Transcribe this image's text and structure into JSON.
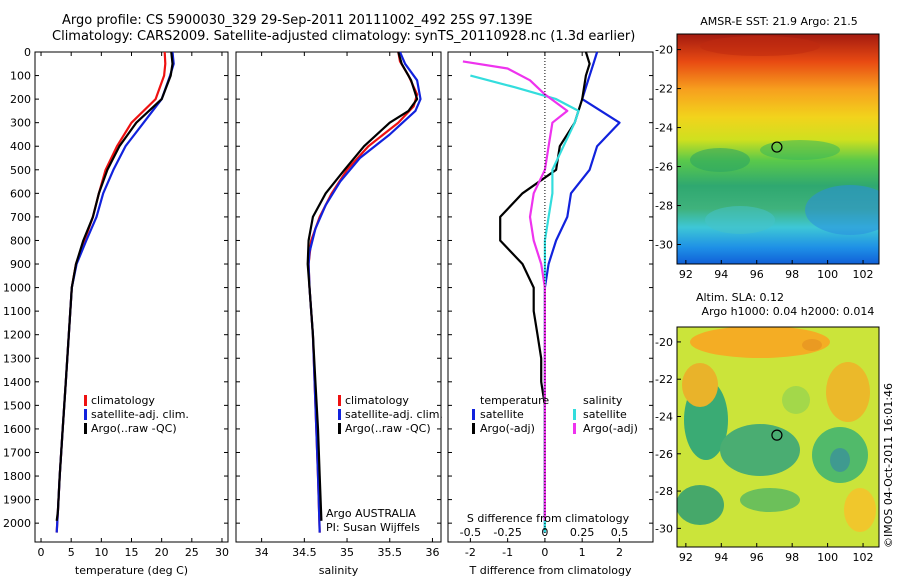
{
  "header": {
    "title_line1": "Argo profile: CS 5900030_329 29-Sep-2011 20111002_492 25S 97.139E",
    "title_line2": "Climatology: CARS2009. Satellite-adjusted climatology: synTS_20110928.nc (1.3d earlier)"
  },
  "colors": {
    "red": "#ee1111",
    "blue": "#1122dd",
    "black": "#000000",
    "cyan": "#33dddd",
    "magenta": "#ee33ee"
  },
  "chart_data": [
    {
      "type": "line",
      "name": "temperature-profile",
      "xlabel": "temperature (deg C)",
      "ylabel": "",
      "xlim": [
        -1,
        31
      ],
      "ylim": [
        2080,
        0
      ],
      "x_ticks": [
        0,
        5,
        10,
        15,
        20,
        25,
        30
      ],
      "y_ticks": [
        0,
        100,
        200,
        300,
        400,
        500,
        600,
        700,
        800,
        900,
        1000,
        1100,
        1200,
        1300,
        1400,
        1500,
        1600,
        1700,
        1800,
        1900,
        2000
      ],
      "legend": [
        "climatology",
        "satellite-adj. clim.",
        "Argo(..raw -QC)"
      ],
      "legend_placement": "lower-middle",
      "series": [
        {
          "name": "climatology",
          "color": "red",
          "points": [
            [
              20.5,
              0
            ],
            [
              20.6,
              50
            ],
            [
              20.4,
              100
            ],
            [
              19,
              200
            ],
            [
              15,
              300
            ],
            [
              12.6,
              400
            ],
            [
              10.7,
              500
            ],
            [
              9.6,
              600
            ],
            [
              8.6,
              700
            ],
            [
              7.2,
              800
            ],
            [
              5.8,
              900
            ],
            [
              5.1,
              1000
            ],
            [
              4.6,
              1200
            ],
            [
              4.1,
              1400
            ],
            [
              3.6,
              1600
            ],
            [
              3.1,
              1800
            ],
            [
              2.8,
              1950
            ],
            [
              2.6,
              2040
            ]
          ]
        },
        {
          "name": "satellite-adj. clim.",
          "color": "blue",
          "points": [
            [
              21.8,
              0
            ],
            [
              22,
              50
            ],
            [
              21.4,
              100
            ],
            [
              20,
              200
            ],
            [
              17,
              300
            ],
            [
              14,
              400
            ],
            [
              12,
              500
            ],
            [
              10.3,
              600
            ],
            [
              9.2,
              700
            ],
            [
              7.5,
              800
            ],
            [
              5.9,
              900
            ],
            [
              5.1,
              1000
            ],
            [
              4.6,
              1200
            ],
            [
              4.1,
              1400
            ],
            [
              3.6,
              1600
            ],
            [
              3.1,
              1800
            ],
            [
              2.8,
              1950
            ],
            [
              2.6,
              2040
            ]
          ]
        },
        {
          "name": "Argo(..raw -QC)",
          "color": "black",
          "points": [
            [
              21.6,
              0
            ],
            [
              21.8,
              50
            ],
            [
              21.5,
              100
            ],
            [
              20,
              200
            ],
            [
              15.8,
              300
            ],
            [
              13,
              400
            ],
            [
              11,
              500
            ],
            [
              9.6,
              600
            ],
            [
              8.6,
              700
            ],
            [
              7,
              800
            ],
            [
              5.8,
              900
            ],
            [
              5.1,
              1000
            ],
            [
              4.6,
              1200
            ],
            [
              4.1,
              1400
            ],
            [
              3.6,
              1600
            ],
            [
              3.1,
              1800
            ],
            [
              2.8,
              1950
            ],
            [
              2.6,
              1990
            ]
          ]
        }
      ]
    },
    {
      "type": "line",
      "name": "salinity-profile",
      "xlabel": "salinity",
      "xlim": [
        33.7,
        36.1
      ],
      "ylim": [
        2080,
        0
      ],
      "x_ticks": [
        34,
        34.5,
        35,
        35.5,
        36
      ],
      "legend": [
        "climatology",
        "satellite-adj. clim.",
        "Argo(..raw -QC)"
      ],
      "legend_placement": "lower-right",
      "annotations": [
        "Argo AUSTRALIA",
        "PI: Susan Wijffels"
      ],
      "series": [
        {
          "name": "climatology",
          "color": "red",
          "points": [
            [
              35.6,
              0
            ],
            [
              35.62,
              40
            ],
            [
              35.72,
              100
            ],
            [
              35.82,
              180
            ],
            [
              35.78,
              230
            ],
            [
              35.6,
              300
            ],
            [
              35.25,
              400
            ],
            [
              35.0,
              500
            ],
            [
              34.82,
              600
            ],
            [
              34.68,
              700
            ],
            [
              34.58,
              800
            ],
            [
              34.55,
              900
            ],
            [
              34.56,
              1000
            ],
            [
              34.58,
              1100
            ],
            [
              34.6,
              1200
            ],
            [
              34.62,
              1400
            ],
            [
              34.64,
              1600
            ],
            [
              34.66,
              1800
            ],
            [
              34.68,
              2040
            ]
          ]
        },
        {
          "name": "satellite-adj. clim.",
          "color": "blue",
          "points": [
            [
              35.62,
              0
            ],
            [
              35.68,
              50
            ],
            [
              35.82,
              120
            ],
            [
              35.86,
              200
            ],
            [
              35.8,
              250
            ],
            [
              35.5,
              350
            ],
            [
              35.15,
              450
            ],
            [
              34.92,
              550
            ],
            [
              34.75,
              650
            ],
            [
              34.63,
              750
            ],
            [
              34.56,
              850
            ],
            [
              34.55,
              900
            ],
            [
              34.56,
              1000
            ],
            [
              34.58,
              1100
            ],
            [
              34.6,
              1200
            ],
            [
              34.62,
              1400
            ],
            [
              34.64,
              1600
            ],
            [
              34.66,
              1800
            ],
            [
              34.68,
              2040
            ]
          ]
        },
        {
          "name": "Argo(..raw -QC)",
          "color": "black",
          "points": [
            [
              35.6,
              0
            ],
            [
              35.64,
              50
            ],
            [
              35.75,
              120
            ],
            [
              35.82,
              200
            ],
            [
              35.72,
              250
            ],
            [
              35.5,
              300
            ],
            [
              35.2,
              400
            ],
            [
              34.97,
              500
            ],
            [
              34.75,
              600
            ],
            [
              34.6,
              700
            ],
            [
              34.55,
              800
            ],
            [
              34.54,
              900
            ],
            [
              34.56,
              1000
            ],
            [
              34.58,
              1100
            ],
            [
              34.6,
              1200
            ],
            [
              34.63,
              1400
            ],
            [
              34.66,
              1600
            ],
            [
              34.68,
              1800
            ],
            [
              34.7,
              1990
            ]
          ]
        }
      ]
    },
    {
      "type": "line",
      "name": "difference-profile",
      "xlabel": "T difference from climatology",
      "xlabel_top": "S difference from climatology",
      "xlim": [
        -2.6,
        2.9
      ],
      "ylim": [
        2080,
        0
      ],
      "x_ticks": [
        -2,
        -1,
        0,
        1,
        2
      ],
      "x_ticks_top": [
        "-0.5",
        "-0.25",
        "0",
        "0.25",
        "0.5"
      ],
      "x_ticks_top_pos": [
        -2,
        -1,
        0,
        1,
        2
      ],
      "legend_temperature_title": "temperature",
      "legend_salinity_title": "salinity",
      "legend_temperature": [
        "satellite",
        "Argo(-adj)"
      ],
      "legend_salinity": [
        "satellite",
        "Argo(-adj)"
      ],
      "legend_placement": "lower-middle",
      "series": [
        {
          "name": "temperature satellite",
          "color": "blue",
          "points": [
            [
              1.4,
              0
            ],
            [
              1.3,
              50
            ],
            [
              1.2,
              100
            ],
            [
              1,
              200
            ],
            [
              2,
              300
            ],
            [
              1.4,
              400
            ],
            [
              1.2,
              500
            ],
            [
              0.7,
              600
            ],
            [
              0.6,
              700
            ],
            [
              0.3,
              800
            ],
            [
              0.1,
              900
            ],
            [
              0,
              1000
            ],
            [
              0,
              1200
            ],
            [
              0,
              1400
            ],
            [
              0,
              1600
            ],
            [
              0,
              1800
            ],
            [
              0,
              2040
            ]
          ]
        },
        {
          "name": "temperature Argo(-adj)",
          "color": "black",
          "points": [
            [
              1.1,
              0
            ],
            [
              1.2,
              50
            ],
            [
              1.1,
              100
            ],
            [
              1,
              200
            ],
            [
              0.8,
              300
            ],
            [
              0.4,
              400
            ],
            [
              0.3,
              500
            ],
            [
              -0.6,
              600
            ],
            [
              -1.2,
              700
            ],
            [
              -1.2,
              800
            ],
            [
              -0.6,
              900
            ],
            [
              -0.3,
              1000
            ],
            [
              -0.3,
              1100
            ],
            [
              -0.2,
              1200
            ],
            [
              -0.1,
              1300
            ],
            [
              -0.1,
              1400
            ],
            [
              0,
              1500
            ],
            [
              0,
              1600
            ],
            [
              0,
              1800
            ],
            [
              0,
              1990
            ]
          ]
        },
        {
          "name": "salinity satellite",
          "color": "cyan",
          "points": [
            [
              -2,
              100
            ],
            [
              -0.8,
              150
            ],
            [
              0.3,
              200
            ],
            [
              0.9,
              250
            ],
            [
              0.8,
              300
            ],
            [
              0.5,
              400
            ],
            [
              0.2,
              500
            ],
            [
              0.2,
              600
            ],
            [
              0.1,
              700
            ],
            [
              0,
              800
            ],
            [
              0,
              900
            ],
            [
              0,
              1000
            ],
            [
              0,
              1200
            ],
            [
              0,
              1400
            ],
            [
              0,
              1600
            ],
            [
              0,
              1800
            ],
            [
              0,
              2040
            ]
          ]
        },
        {
          "name": "salinity Argo(-adj)",
          "color": "magenta",
          "points": [
            [
              -2.2,
              40
            ],
            [
              -1,
              70
            ],
            [
              -0.4,
              120
            ],
            [
              0,
              180
            ],
            [
              0.6,
              250
            ],
            [
              0.2,
              300
            ],
            [
              0.1,
              400
            ],
            [
              0,
              500
            ],
            [
              -0.3,
              600
            ],
            [
              -0.4,
              700
            ],
            [
              -0.3,
              800
            ],
            [
              -0.1,
              900
            ],
            [
              0,
              1000
            ],
            [
              0,
              1200
            ],
            [
              0,
              1400
            ],
            [
              0,
              1600
            ],
            [
              0,
              1800
            ],
            [
              0,
              1990
            ]
          ]
        }
      ]
    },
    {
      "type": "heatmap",
      "name": "sst-map",
      "title": "AMSR-E SST: 21.9 Argo: 21.5",
      "xlim": [
        91.5,
        102.9
      ],
      "ylim": [
        -31,
        -19.2
      ],
      "x_ticks": [
        92,
        94,
        96,
        98,
        100,
        102
      ],
      "y_ticks": [
        -20,
        -22,
        -24,
        -26,
        -28,
        -30
      ],
      "marker": [
        97.139,
        -25
      ],
      "colormap": "jet"
    },
    {
      "type": "heatmap",
      "name": "sla-map",
      "title": "Altim. SLA: 0.12",
      "subtitle": "Argo h1000: 0.04 h2000: 0.014",
      "xlim": [
        91.5,
        102.9
      ],
      "ylim": [
        -31,
        -19.2
      ],
      "x_ticks": [
        92,
        94,
        96,
        98,
        100,
        102
      ],
      "y_ticks": [
        -20,
        -22,
        -24,
        -26,
        -28,
        -30
      ],
      "marker": [
        97.139,
        -25
      ],
      "colormap": "jet"
    }
  ],
  "footer": {
    "credit": "©IMOS 04-Oct-2011 16:01:46"
  }
}
